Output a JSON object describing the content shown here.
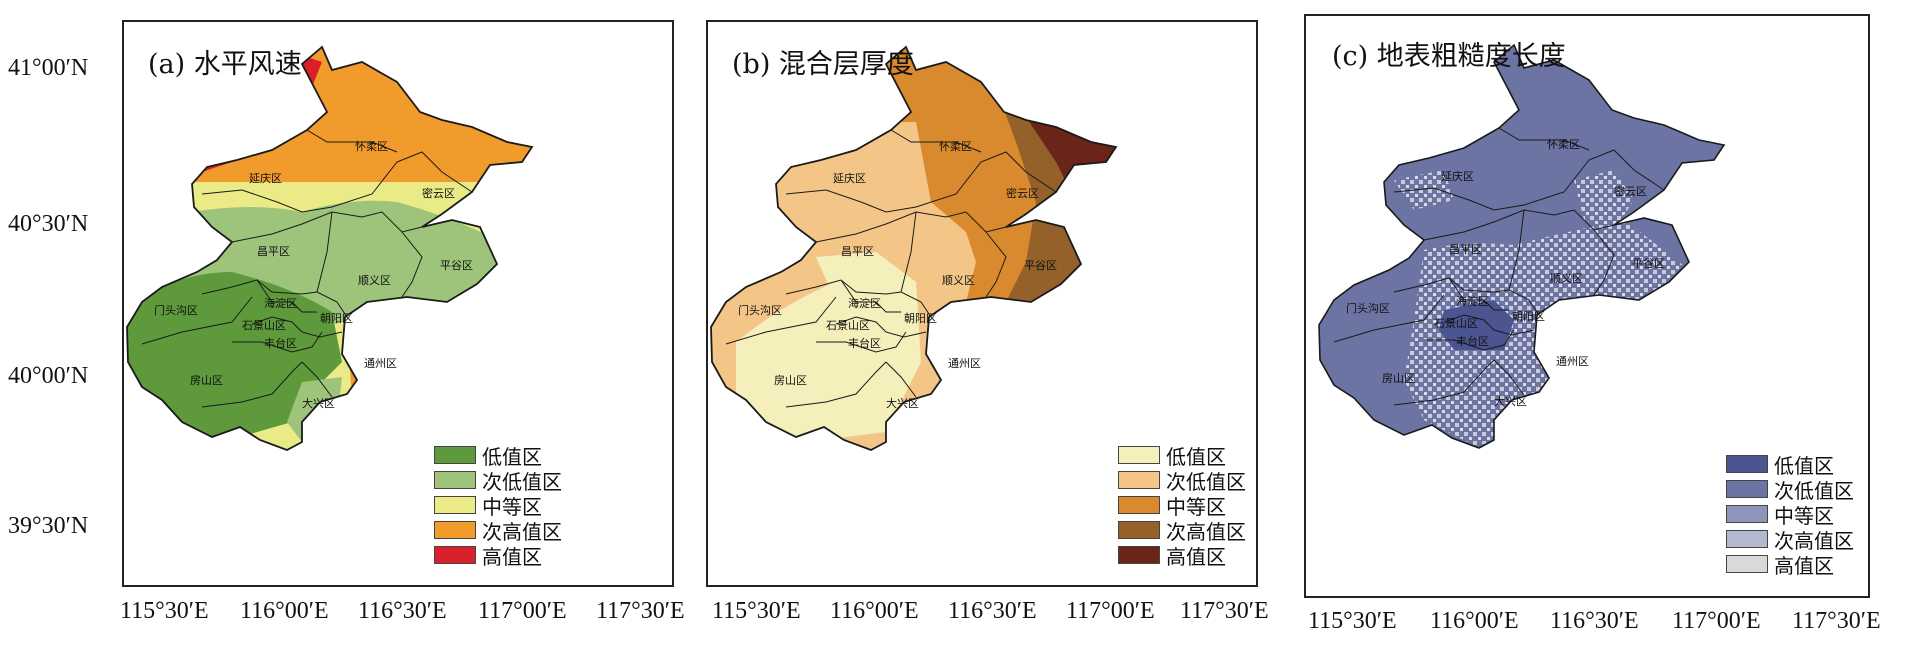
{
  "panels": [
    {
      "title": "(a) 水平风速",
      "legend": [
        {
          "label": "低值区",
          "color": "#5e9a3c"
        },
        {
          "label": "次低值区",
          "color": "#9dc47a"
        },
        {
          "label": "中等区",
          "color": "#eaea86"
        },
        {
          "label": "次高值区",
          "color": "#f09b2c"
        },
        {
          "label": "高值区",
          "color": "#d9202a"
        }
      ]
    },
    {
      "title": "(b) 混合层厚度",
      "legend": [
        {
          "label": "低值区",
          "color": "#f5efbc"
        },
        {
          "label": "次低值区",
          "color": "#f3c688"
        },
        {
          "label": "中等区",
          "color": "#d98a2e"
        },
        {
          "label": "次高值区",
          "color": "#95612a"
        },
        {
          "label": "高值区",
          "color": "#6a2418"
        }
      ]
    },
    {
      "title": "(c) 地表粗糙度长度",
      "legend": [
        {
          "label": "低值区",
          "color": "#4a5592"
        },
        {
          "label": "次低值区",
          "color": "#6b74a3"
        },
        {
          "label": "中等区",
          "color": "#8d95b8"
        },
        {
          "label": "次高值区",
          "color": "#b3b8cf"
        },
        {
          "label": "高值区",
          "color": "#d9d9d9"
        }
      ]
    }
  ],
  "districts": {
    "yanqing": "延庆区",
    "huairou": "怀柔区",
    "miyun": "密云区",
    "changping": "昌平区",
    "pinggu": "平谷区",
    "shunyi": "顺义区",
    "mentougou": "门头沟区",
    "haidian": "海淀区",
    "shijingshan": "石景山区",
    "chaoyang": "朝阳区",
    "fengtai": "丰台区",
    "fangshan": "房山区",
    "tongzhou": "通州区",
    "daxing": "大兴区"
  },
  "lat_labels": [
    "41°00′N",
    "40°30′N",
    "40°00′N",
    "39°30′N"
  ],
  "lon_labels": [
    "115°30′E",
    "116°00′E",
    "116°30′E",
    "117°00′E",
    "117°30′E"
  ],
  "styles": {
    "outline": "#1a1a1a",
    "speckle": "#c9cad8"
  }
}
